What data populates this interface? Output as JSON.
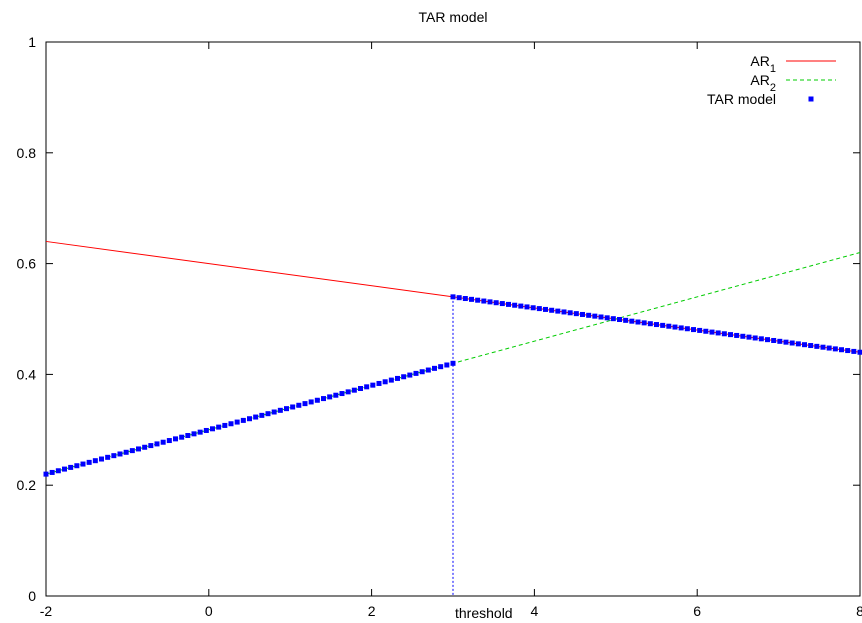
{
  "chart_data": {
    "type": "line",
    "title": "TAR model",
    "xlabel": "",
    "ylabel": "",
    "xlim": [
      -2,
      8
    ],
    "ylim": [
      0,
      1
    ],
    "xticks": [
      -2,
      0,
      2,
      4,
      6,
      8
    ],
    "yticks": [
      0,
      0.2,
      0.4,
      0.6,
      0.8,
      1
    ],
    "grid": false,
    "legend_position": "top-right",
    "threshold": {
      "x": 3,
      "label": "threshold",
      "color": "#0000ff"
    },
    "series": [
      {
        "name": "AR",
        "name_subscript": "1",
        "style": "solid",
        "color": "#ff0000",
        "x": [
          -2,
          8
        ],
        "y": [
          0.64,
          0.44
        ]
      },
      {
        "name": "AR",
        "name_subscript": "2",
        "style": "dashed",
        "color": "#00cc00",
        "x": [
          -2,
          8
        ],
        "y": [
          0.22,
          0.62
        ]
      },
      {
        "name": "TAR model",
        "style": "points",
        "color": "#0000ff",
        "segments": [
          {
            "x": [
              -2,
              3
            ],
            "y": [
              0.22,
              0.42
            ]
          },
          {
            "x": [
              3,
              8
            ],
            "y": [
              0.54,
              0.44
            ]
          }
        ]
      }
    ]
  }
}
